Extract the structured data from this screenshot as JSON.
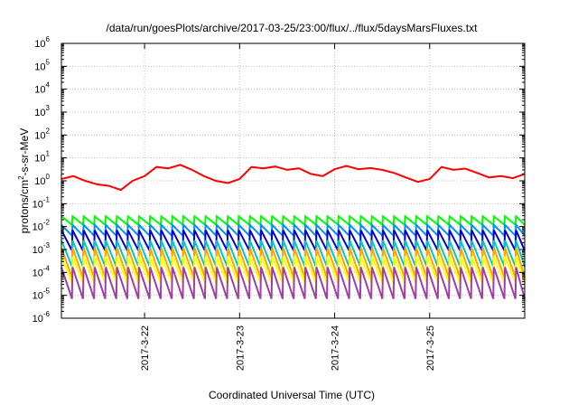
{
  "chart_data": {
    "type": "line",
    "title": "/data/run/goesPlots/archive/2017-03-25/23:00/flux/../flux/5daysMarsFluxes.txt",
    "xlabel": "Coordinated Universal Time (UTC)",
    "ylabel_parts": {
      "pre": "protons/cm",
      "sup": "2",
      "post": "-s-sr-MeV"
    },
    "y_scale": "log",
    "ylim_exponents": [
      -6,
      6
    ],
    "y_tick_base": "10",
    "y_tick_exponents": [
      "-6",
      "-5",
      "-4",
      "-3",
      "-2",
      "-1",
      "0",
      "1",
      "2",
      "3",
      "4",
      "5",
      "6"
    ],
    "x_range_days": [
      "2017-03-21 03:00",
      "2017-03-26 00:00"
    ],
    "x_tick_labels": [
      "2017-3-22",
      "2017-3-23",
      "2017-3-24",
      "2017-3-25"
    ],
    "grid": true,
    "legend": "none",
    "sawtooth_period_hours": 2.8,
    "series": [
      {
        "color": "#ff0000",
        "x": [
          "2017-03-21 03:00",
          "2017-03-21 06:00",
          "2017-03-21 09:00",
          "2017-03-21 12:00",
          "2017-03-21 15:00",
          "2017-03-21 18:00",
          "2017-03-21 21:00",
          "2017-03-22 00:00",
          "2017-03-22 03:00",
          "2017-03-22 06:00",
          "2017-03-22 09:00",
          "2017-03-22 12:00",
          "2017-03-22 15:00",
          "2017-03-22 18:00",
          "2017-03-22 21:00",
          "2017-03-23 00:00",
          "2017-03-23 03:00",
          "2017-03-23 06:00",
          "2017-03-23 09:00",
          "2017-03-23 12:00",
          "2017-03-23 15:00",
          "2017-03-23 18:00",
          "2017-03-23 21:00",
          "2017-03-24 00:00",
          "2017-03-24 03:00",
          "2017-03-24 06:00",
          "2017-03-24 09:00",
          "2017-03-24 12:00",
          "2017-03-24 15:00",
          "2017-03-24 18:00",
          "2017-03-24 21:00",
          "2017-03-25 00:00",
          "2017-03-25 03:00",
          "2017-03-25 06:00",
          "2017-03-25 09:00",
          "2017-03-25 12:00",
          "2017-03-25 15:00",
          "2017-03-25 18:00",
          "2017-03-25 21:00",
          "2017-03-26 00:00"
        ],
        "values": [
          1.2,
          1.6,
          1.0,
          0.7,
          0.6,
          0.4,
          1.0,
          1.6,
          4.0,
          3.5,
          5.0,
          3.0,
          1.6,
          1.0,
          0.8,
          1.2,
          4.0,
          3.5,
          4.2,
          3.0,
          3.5,
          2.0,
          1.6,
          3.2,
          4.5,
          3.2,
          3.6,
          3.0,
          2.2,
          1.4,
          0.9,
          1.2,
          4.0,
          3.0,
          3.4,
          2.2,
          1.4,
          1.6,
          1.3,
          2.0
        ]
      },
      {
        "color": "#00ff00",
        "peak": 0.028,
        "trough": 0.012
      },
      {
        "color": "#0090ff",
        "peak": 0.012,
        "trough": 0.004
      },
      {
        "color": "#0000cc",
        "peak": 0.007,
        "trough": 0.0009
      },
      {
        "color": "#00c8c8",
        "peak": 0.0025,
        "trough": 0.00018
      },
      {
        "color": "#ffa500",
        "peak": 0.0012,
        "trough": 6e-05
      },
      {
        "color": "#ffff00",
        "peak": 0.0005,
        "trough": 3.5e-05
      },
      {
        "color": "#a040a0",
        "peak": 0.00017,
        "trough": 7e-06
      }
    ]
  }
}
